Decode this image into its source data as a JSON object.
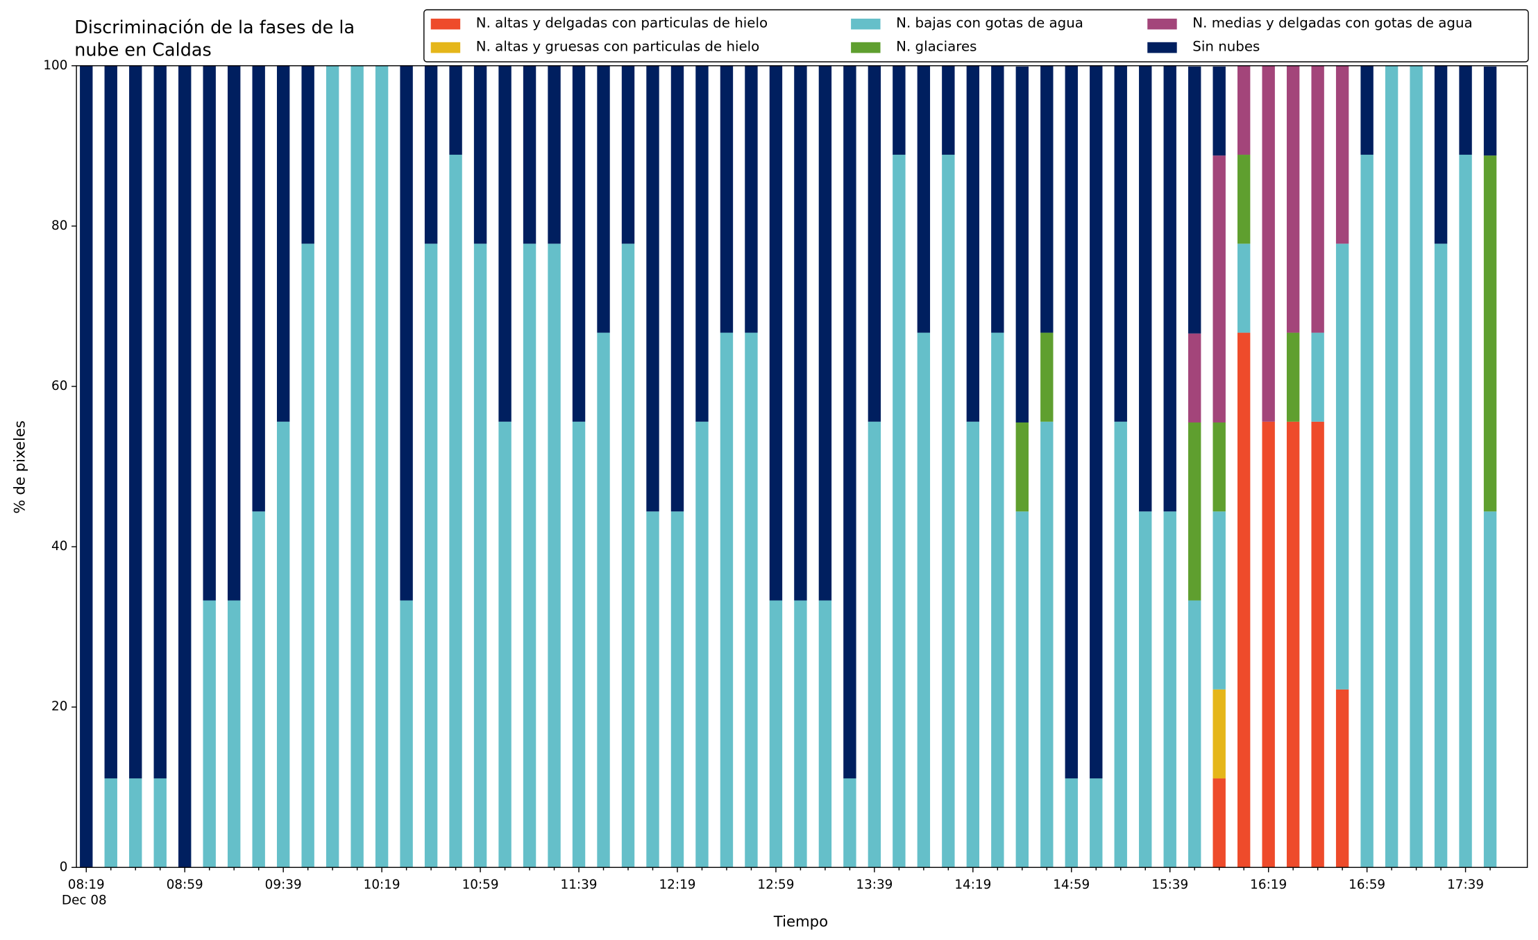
{
  "chart_data": {
    "type": "stacked_bar",
    "title": [
      "Discriminación de la fases de la",
      "nube en Caldas"
    ],
    "xlabel": "Tiempo",
    "ylabel": "% de pixeles",
    "date_label": "Dec 08",
    "categories": [
      "08:19",
      null,
      null,
      null,
      "08:59",
      null,
      null,
      null,
      "09:39",
      null,
      null,
      null,
      "10:19",
      null,
      null,
      null,
      "10:59",
      null,
      null,
      null,
      "11:39",
      null,
      null,
      null,
      "12:19",
      null,
      null,
      null,
      "12:59",
      null,
      null,
      null,
      "13:39",
      null,
      null,
      null,
      "14:19",
      null,
      null,
      null,
      "14:59",
      null,
      null,
      null,
      "15:39",
      null,
      null,
      null,
      "16:19",
      null,
      null,
      null,
      "16:59",
      null,
      null,
      null,
      "17:39",
      null
    ],
    "ylim": [
      0,
      100
    ],
    "yticks": [
      0,
      20,
      40,
      60,
      80,
      100
    ],
    "series": [
      {
        "name": "N. altas y delgadas con particulas de hielo",
        "color": "#ee4b2b",
        "values": [
          0,
          0,
          0,
          0,
          0,
          0,
          0,
          0,
          0,
          0,
          0,
          0,
          0,
          0,
          0,
          0,
          0,
          0,
          0,
          0,
          0,
          0,
          0,
          0,
          0,
          0,
          0,
          0,
          0,
          0,
          0,
          0,
          0,
          0,
          0,
          0,
          0,
          0,
          0,
          0,
          0,
          0,
          0,
          0,
          0,
          0,
          11.1,
          66.7,
          55.6,
          55.6,
          55.6,
          22.2,
          0,
          0,
          0,
          0,
          0,
          0
        ]
      },
      {
        "name": "N. altas y gruesas con particulas de hielo",
        "color": "#e5b61a",
        "values": [
          0,
          0,
          0,
          0,
          0,
          0,
          0,
          0,
          0,
          0,
          0,
          0,
          0,
          0,
          0,
          0,
          0,
          0,
          0,
          0,
          0,
          0,
          0,
          0,
          0,
          0,
          0,
          0,
          0,
          0,
          0,
          0,
          0,
          0,
          0,
          0,
          0,
          0,
          0,
          0,
          0,
          0,
          0,
          0,
          0,
          0,
          11.1,
          0,
          0,
          0,
          0,
          0,
          0,
          0,
          0,
          0,
          0,
          0
        ]
      },
      {
        "name": "N. bajas con gotas de agua",
        "color": "#65bfc9",
        "values": [
          0,
          11.1,
          11.1,
          11.1,
          0,
          33.3,
          33.3,
          44.4,
          55.6,
          77.8,
          100,
          100,
          100,
          33.3,
          77.8,
          88.9,
          77.8,
          55.6,
          77.8,
          77.8,
          55.6,
          66.7,
          77.8,
          44.4,
          44.4,
          55.6,
          66.7,
          66.7,
          33.3,
          33.3,
          33.3,
          11.1,
          55.6,
          88.9,
          66.7,
          88.9,
          55.6,
          66.7,
          44.4,
          55.6,
          11.1,
          11.1,
          55.6,
          44.4,
          44.4,
          33.3,
          22.2,
          11.1,
          0,
          0,
          11.1,
          55.6,
          88.9,
          100,
          100,
          77.8,
          88.9,
          44.4
        ]
      },
      {
        "name": "N. glaciares",
        "color": "#5f9f2f",
        "values": [
          0,
          0,
          0,
          0,
          0,
          0,
          0,
          0,
          0,
          0,
          0,
          0,
          0,
          0,
          0,
          0,
          0,
          0,
          0,
          0,
          0,
          0,
          0,
          0,
          0,
          0,
          0,
          0,
          0,
          0,
          0,
          0,
          0,
          0,
          0,
          0,
          0,
          0,
          11.1,
          11.1,
          0,
          0,
          0,
          0,
          0,
          22.2,
          11.1,
          11.1,
          0,
          11.1,
          0,
          0,
          0,
          0,
          0,
          0,
          0,
          44.4
        ]
      },
      {
        "name": "N. medias y delgadas con gotas de agua",
        "color": "#a3457a",
        "values": [
          0,
          0,
          0,
          0,
          0,
          0,
          0,
          0,
          0,
          0,
          0,
          0,
          0,
          0,
          0,
          0,
          0,
          0,
          0,
          0,
          0,
          0,
          0,
          0,
          0,
          0,
          0,
          0,
          0,
          0,
          0,
          0,
          0,
          0,
          0,
          0,
          0,
          0,
          0,
          0,
          0,
          0,
          0,
          0,
          0,
          11.1,
          33.3,
          11.1,
          44.4,
          33.3,
          33.3,
          22.2,
          0,
          0,
          0,
          0,
          0,
          0
        ]
      },
      {
        "name": "Sin nubes",
        "color": "#001f5f",
        "values": [
          100,
          88.9,
          88.9,
          88.9,
          100,
          66.7,
          66.7,
          55.6,
          44.4,
          22.2,
          0,
          0,
          0,
          66.7,
          22.2,
          11.1,
          22.2,
          44.4,
          22.2,
          22.2,
          44.4,
          33.3,
          22.2,
          55.6,
          55.6,
          44.4,
          33.3,
          33.3,
          66.7,
          66.7,
          66.7,
          88.9,
          44.4,
          11.1,
          33.3,
          11.1,
          44.4,
          33.3,
          44.4,
          33.3,
          88.9,
          88.9,
          44.4,
          55.6,
          55.6,
          33.3,
          11.1,
          0,
          0,
          0,
          0,
          0,
          11.1,
          0,
          0,
          22.2,
          11.1,
          11.1
        ]
      }
    ]
  }
}
